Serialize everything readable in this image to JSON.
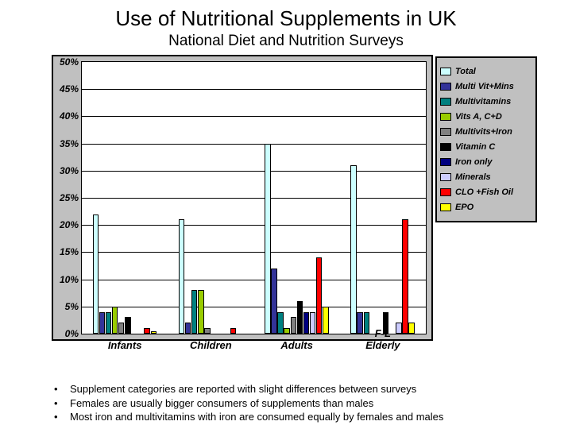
{
  "title": "Use of Nutritional Supplements in UK",
  "subtitle": "National Diet and Nutrition Surveys",
  "chart": {
    "type": "bar",
    "ylim": [
      0,
      50
    ],
    "ytick_step": 5,
    "ytick_suffix": "%",
    "background_color": "#c0c0c0",
    "plot_background": "#ffffff",
    "grid_color": "#000000",
    "categories": [
      "Infants",
      "Children",
      "Adults",
      "F-L Elderly"
    ],
    "series": [
      {
        "name": "Total",
        "color": "#ccffff",
        "values": [
          22,
          21,
          35,
          31
        ]
      },
      {
        "name": "Multi Vit+Mins",
        "color": "#333399",
        "values": [
          4,
          2,
          12,
          4
        ]
      },
      {
        "name": "Multivitamins",
        "color": "#008080",
        "values": [
          4,
          8,
          4,
          4
        ]
      },
      {
        "name": "Vits A, C+D",
        "color": "#99cc00",
        "values": [
          5,
          8,
          1,
          0
        ]
      },
      {
        "name": "Multivits+Iron",
        "color": "#808080",
        "values": [
          2,
          1,
          3,
          0
        ]
      },
      {
        "name": "Vitamin C",
        "color": "#000000",
        "values": [
          3,
          0,
          6,
          4
        ]
      },
      {
        "name": "Iron only",
        "color": "#000080",
        "values": [
          0,
          0,
          4,
          0
        ]
      },
      {
        "name": "Minerals",
        "color": "#ccccff",
        "values": [
          0,
          0,
          4,
          2
        ]
      },
      {
        "name": "CLO +Fish Oil",
        "color": "#ff0000",
        "values": [
          1,
          1,
          14,
          21
        ]
      },
      {
        "name": "EPO",
        "color": "#ffff00",
        "values": [
          0.5,
          0,
          5,
          2
        ]
      }
    ],
    "bar_gap_ratio": 0.08,
    "group_gap_ratio": 0.25
  },
  "bullets": [
    "Supplement categories are reported with slight differences between surveys",
    "Females are usually bigger consumers of supplements than males",
    "Most iron and multivitamins with iron are consumed equally by females and males"
  ]
}
